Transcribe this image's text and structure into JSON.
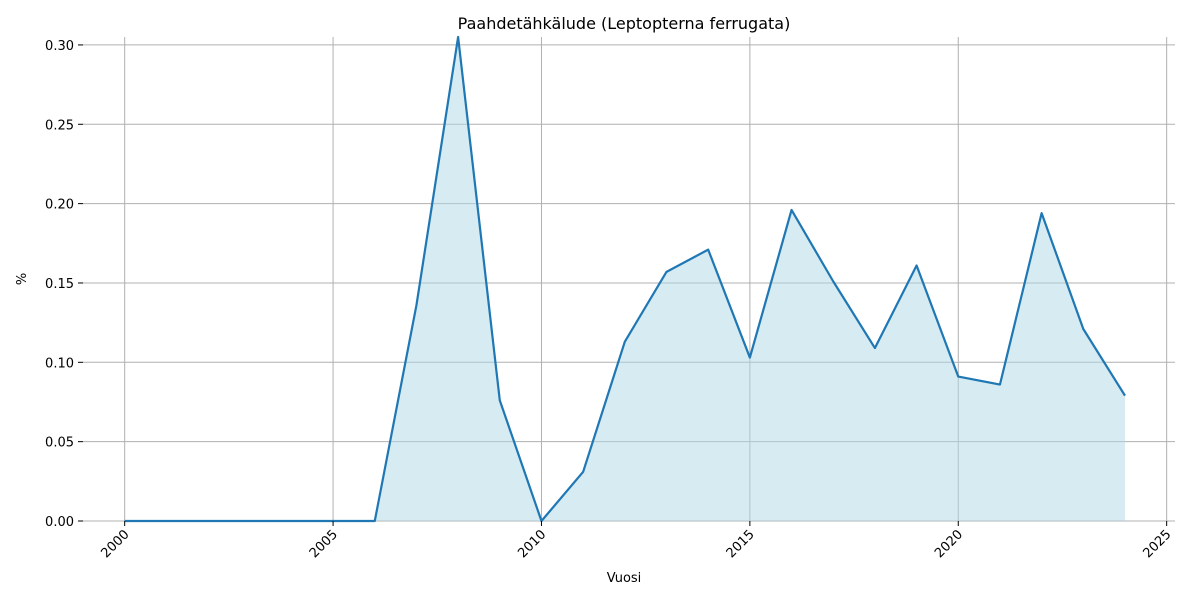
{
  "chart_data": {
    "type": "area",
    "title": "Paahdetähkälude (Leptopterna ferrugata)",
    "xlabel": "Vuosi",
    "ylabel": "%",
    "xlim": [
      1999,
      2025.2
    ],
    "ylim": [
      0,
      0.305
    ],
    "x_ticks": [
      2000,
      2005,
      2010,
      2015,
      2020,
      2025
    ],
    "y_ticks": [
      0.0,
      0.05,
      0.1,
      0.15,
      0.2,
      0.25,
      0.3
    ],
    "y_tick_labels": [
      "0.00",
      "0.05",
      "0.10",
      "0.15",
      "0.20",
      "0.25",
      "0.30"
    ],
    "grid": true,
    "line_color": "#1f77b4",
    "fill_color": "#add8e6",
    "series": [
      {
        "x": [
          2000,
          2001,
          2002,
          2003,
          2004,
          2005,
          2006,
          2007,
          2008,
          2009,
          2010,
          2011,
          2012,
          2013,
          2014,
          2015,
          2016,
          2017,
          2018,
          2019,
          2020,
          2021,
          2022,
          2023,
          2024
        ],
        "values": [
          0,
          0,
          0,
          0,
          0,
          0,
          0,
          0.136,
          0.305,
          0.076,
          0,
          0.031,
          0.113,
          0.157,
          0.171,
          0.103,
          0.196,
          0.151,
          0.109,
          0.161,
          0.091,
          0.086,
          0.194,
          0.121,
          0.079
        ]
      }
    ]
  }
}
